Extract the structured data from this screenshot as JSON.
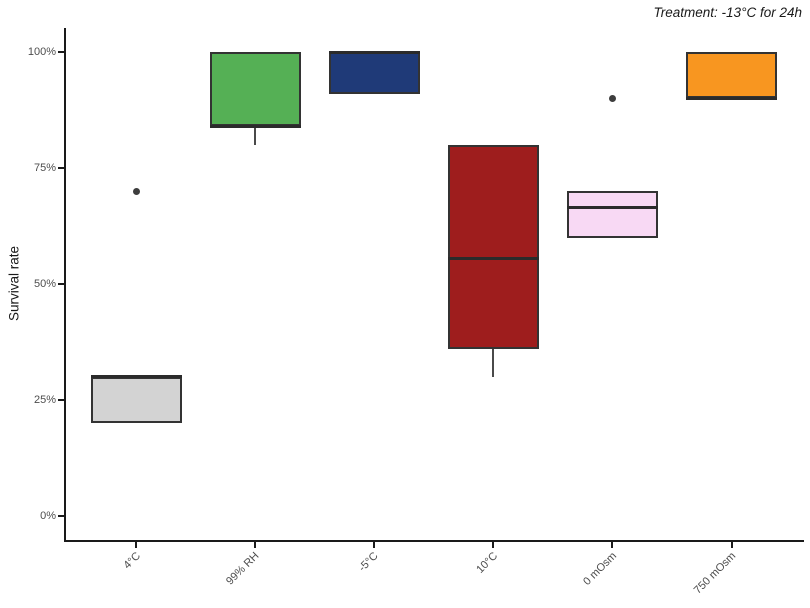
{
  "chart_data": {
    "type": "boxplot",
    "title": "Treatment: -13°C for 24h",
    "ylabel": "Survival rate",
    "xlabel": "",
    "ylim": [
      0,
      100
    ],
    "grid": false,
    "legend": "none",
    "panel_background": "#ffffff",
    "yticks": [
      {
        "value": 0,
        "label": "0%"
      },
      {
        "value": 25,
        "label": "25%"
      },
      {
        "value": 50,
        "label": "50%"
      },
      {
        "value": 75,
        "label": "75%"
      },
      {
        "value": 100,
        "label": "100%"
      }
    ],
    "categories": [
      "4°C",
      "99% RH",
      "-5°C",
      "10°C",
      "0 mOsm",
      "750 mOsm"
    ],
    "series": [
      {
        "category": "4°C",
        "fill": "#d3d3d3",
        "whisker_low": 20,
        "q1": 20,
        "median": 30,
        "q3": 30,
        "whisker_high": 30,
        "outliers": [
          70
        ]
      },
      {
        "category": "99% RH",
        "fill": "#55b055",
        "whisker_low": 80,
        "q1": 84,
        "median": 84,
        "q3": 100,
        "whisker_high": 100,
        "outliers": []
      },
      {
        "category": "-5°C",
        "fill": "#1f3a78",
        "whisker_low": 91,
        "q1": 91,
        "median": 100,
        "q3": 100,
        "whisker_high": 100,
        "outliers": []
      },
      {
        "category": "10°C",
        "fill": "#9e1d1d",
        "whisker_low": 30,
        "q1": 36,
        "median": 55.5,
        "q3": 80,
        "whisker_high": 80,
        "outliers": []
      },
      {
        "category": "0 mOsm",
        "fill": "#f8d9f4",
        "whisker_low": 60,
        "q1": 60,
        "median": 66.5,
        "q3": 70,
        "whisker_high": 70,
        "outliers": [
          90
        ]
      },
      {
        "category": "750 mOsm",
        "fill": "#f89620",
        "whisker_low": 90,
        "q1": 90,
        "median": 90,
        "q3": 100,
        "whisker_high": 100,
        "outliers": []
      }
    ],
    "colors": {
      "box_border": "#333333",
      "median": "#2b2b2b",
      "whisker": "#4a4a4a",
      "outlier": "#3d3d3d",
      "axis": "#1a1a1a",
      "tick_text": "#4d4d4d"
    }
  }
}
